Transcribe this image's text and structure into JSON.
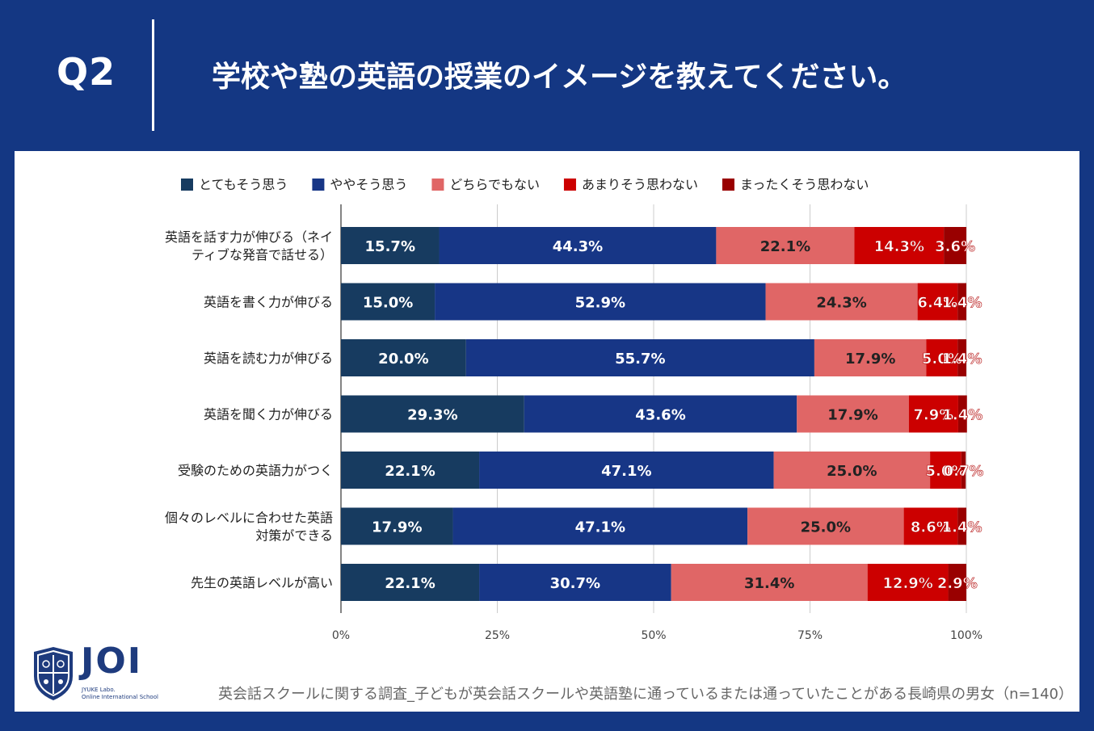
{
  "header": {
    "q_label": "Q2",
    "question": "学校や塾の英語の授業のイメージを教えてください。"
  },
  "colors": {
    "background": "#143783",
    "series": [
      "#173b60",
      "#173686",
      "#e06666",
      "#cc0000",
      "#990000"
    ]
  },
  "chart_data": {
    "type": "bar",
    "orientation": "horizontal",
    "stacked": true,
    "legend_position": "top",
    "categories": [
      "英語を話す力が伸びる（ネイティブな発音で話せる）",
      "英語を書く力が伸びる",
      "英語を読む力が伸びる",
      "英語を聞く力が伸びる",
      "受験のための英語力がつく",
      "個々のレベルに合わせた英語対策ができる",
      "先生の英語レベルが高い"
    ],
    "category_lines": [
      [
        "英語を話す力が伸びる（ネイ",
        "ティブな発音で話せる）"
      ],
      [
        "英語を書く力が伸びる"
      ],
      [
        "英語を読む力が伸びる"
      ],
      [
        "英語を聞く力が伸びる"
      ],
      [
        "受験のための英語力がつく"
      ],
      [
        "個々のレベルに合わせた英語",
        "対策ができる"
      ],
      [
        "先生の英語レベルが高い"
      ]
    ],
    "series": [
      {
        "name": "とてもそう思う",
        "values": [
          15.7,
          15.0,
          20.0,
          29.3,
          22.1,
          17.9,
          22.1
        ],
        "labels": [
          "15.7%",
          "15.0%",
          "20.0%",
          "29.3%",
          "22.1%",
          "17.9%",
          "22.1%"
        ]
      },
      {
        "name": "ややそう思う",
        "values": [
          44.3,
          52.9,
          55.7,
          43.6,
          47.1,
          47.1,
          30.7
        ],
        "labels": [
          "44.3%",
          "52.9%",
          "55.7%",
          "43.6%",
          "47.1%",
          "47.1%",
          "30.7%"
        ]
      },
      {
        "name": "どちらでもない",
        "values": [
          22.1,
          24.3,
          17.9,
          17.9,
          25.0,
          25.0,
          31.4
        ],
        "labels": [
          "22.1%",
          "24.3%",
          "17.9%",
          "17.9%",
          "25.0%",
          "25.0%",
          "31.4%"
        ]
      },
      {
        "name": "あまりそう思わない",
        "values": [
          14.3,
          6.4,
          5.0,
          7.9,
          5.0,
          8.6,
          12.9
        ],
        "labels": [
          "14.3%",
          "6.4%",
          "5.0%",
          "7.9%",
          "5.0%",
          "8.6%",
          "12.9%"
        ]
      },
      {
        "name": "まったくそう思わない",
        "values": [
          3.6,
          1.4,
          1.4,
          1.4,
          0.7,
          1.4,
          2.9
        ],
        "labels": [
          "3.6%",
          "1.4%",
          "1.4%",
          "1.4%",
          "0.7%",
          "1.4%",
          "2.9%"
        ]
      }
    ],
    "x_ticks": [
      "0%",
      "25%",
      "50%",
      "75%",
      "100%"
    ],
    "xlim": [
      0,
      100
    ],
    "grid": true
  },
  "logo": {
    "name": "JOI",
    "sub1": "JYUKE Labo.",
    "sub2": "Online International School"
  },
  "footnote": "英会話スクールに関する調査_子どもが英会話スクールや英語塾に通っているまたは通っていたことがある長崎県の男女（n=140）"
}
